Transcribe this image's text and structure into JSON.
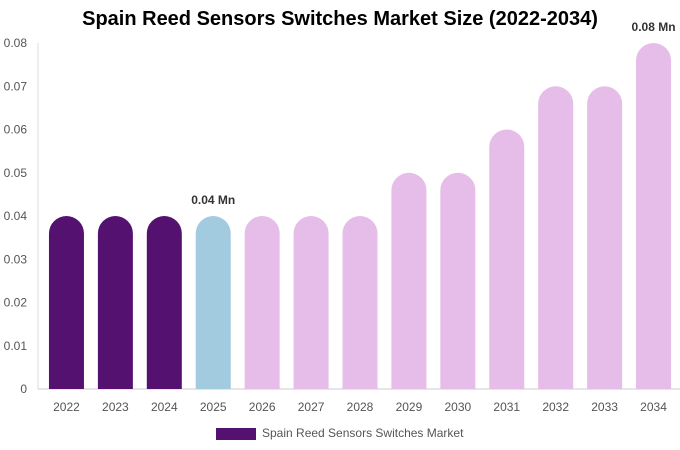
{
  "chart_data": {
    "type": "bar",
    "title": "Spain Reed Sensors Switches Market Size (2022-2034)",
    "categories": [
      "2022",
      "2023",
      "2024",
      "2025",
      "2026",
      "2027",
      "2028",
      "2029",
      "2030",
      "2031",
      "2032",
      "2033",
      "2034"
    ],
    "series": [
      {
        "name": "Spain Reed Sensors Switches Market",
        "values": [
          0.04,
          0.04,
          0.04,
          0.04,
          0.04,
          0.04,
          0.04,
          0.05,
          0.05,
          0.06,
          0.07,
          0.07,
          0.08
        ]
      }
    ],
    "bar_colors": [
      "#541170",
      "#541170",
      "#541170",
      "#a3cbe0",
      "#e6bce8",
      "#e6bce8",
      "#e6bce8",
      "#e6bce8",
      "#e6bce8",
      "#e6bce8",
      "#e6bce8",
      "#e6bce8",
      "#e6bce8"
    ],
    "data_labels": [
      {
        "category": "2025",
        "text": "0.04 Mn"
      },
      {
        "category": "2034",
        "text": "0.08 Mn"
      }
    ],
    "y_ticks": [
      "0",
      "0.01",
      "0.02",
      "0.03",
      "0.04",
      "0.05",
      "0.06",
      "0.07",
      "0.08"
    ],
    "ylim": [
      0,
      0.08
    ],
    "grid": false,
    "legend": "bottom"
  }
}
